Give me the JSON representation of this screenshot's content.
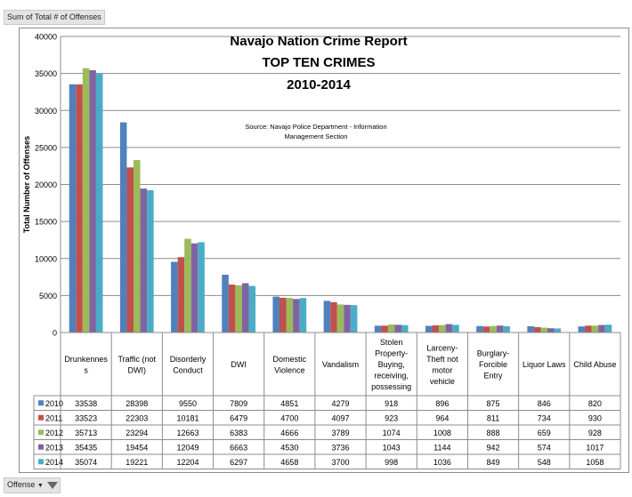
{
  "pivot": {
    "value_field": "Sum of Total # of Offenses",
    "row_field": "Offense"
  },
  "chart_data": {
    "type": "bar",
    "title": [
      "Navajo Nation Crime Report",
      "TOP TEN CRIMES",
      "2010-2014"
    ],
    "source": [
      "Source:  Navajo Police Department - Information",
      "Management Section"
    ],
    "ylabel": "Total Number of Offenses",
    "xlabel": "",
    "ylim": [
      0,
      40000
    ],
    "yticks": [
      0,
      5000,
      10000,
      15000,
      20000,
      25000,
      30000,
      35000,
      40000
    ],
    "grid": true,
    "legend": "data-table",
    "categories": [
      [
        "Drunkennes",
        "s"
      ],
      [
        "Traffic (not",
        "DWI)"
      ],
      [
        "Disorderly",
        "Conduct"
      ],
      [
        "DWI"
      ],
      [
        "Domestic",
        "Violence"
      ],
      [
        "Vandalism"
      ],
      [
        "Stolen",
        "Property-",
        "Buying,",
        "receiving,",
        "possessing"
      ],
      [
        "Larceny-",
        "Theft not",
        "motor",
        "vehicle"
      ],
      [
        "Burglary-",
        "Forcible",
        "Entry"
      ],
      [
        "Liquor Laws"
      ],
      [
        "Child Abuse"
      ]
    ],
    "series": [
      {
        "name": "2010",
        "color": "#4f81bd",
        "values": [
          33538,
          28398,
          9550,
          7809,
          4851,
          4279,
          918,
          896,
          875,
          846,
          820
        ]
      },
      {
        "name": "2011",
        "color": "#c0504d",
        "values": [
          33523,
          22303,
          10181,
          6479,
          4700,
          4097,
          923,
          964,
          811,
          734,
          930
        ]
      },
      {
        "name": "2012",
        "color": "#9bbb59",
        "values": [
          35713,
          23294,
          12663,
          6383,
          4666,
          3789,
          1074,
          1008,
          888,
          659,
          928
        ]
      },
      {
        "name": "2013",
        "color": "#8064a2",
        "values": [
          35435,
          19454,
          12049,
          6663,
          4530,
          3736,
          1043,
          1144,
          942,
          574,
          1017
        ]
      },
      {
        "name": "2014",
        "color": "#4bacc6",
        "values": [
          35074,
          19221,
          12204,
          6297,
          4658,
          3700,
          998,
          1036,
          849,
          548,
          1058
        ]
      }
    ]
  }
}
